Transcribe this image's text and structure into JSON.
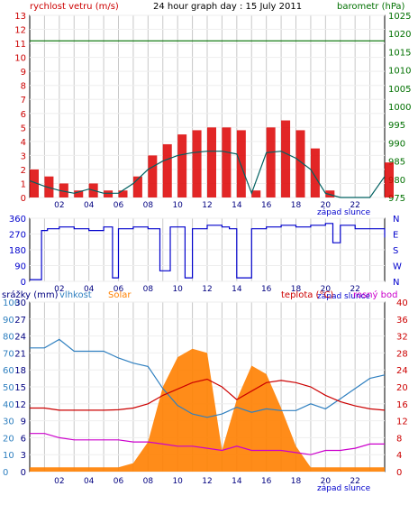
{
  "chart_data": [
    {
      "type": "line",
      "title": "24 hour graph day : 15 July 2011",
      "left_axis_label": "rychlost vetru (m/s)",
      "right_axis_label": "barometr (hPa)",
      "annotation": "západ slunce",
      "x_ticks": [
        "02",
        "04",
        "06",
        "08",
        "10",
        "12",
        "14",
        "16",
        "18",
        "20",
        "22"
      ],
      "left_ticks": [
        "0",
        "1",
        "2",
        "3",
        "4",
        "5",
        "6",
        "7",
        "8",
        "9",
        "10",
        "11",
        "12",
        "13"
      ],
      "right_ticks": [
        "975",
        "980",
        "985",
        "990",
        "995",
        "1000",
        "1005",
        "1010",
        "1015",
        "1020",
        "1025"
      ],
      "ylim_left": [
        0,
        13
      ],
      "ylim_right": [
        975,
        1025
      ],
      "x_hours": [
        0,
        1,
        2,
        3,
        4,
        5,
        6,
        7,
        8,
        9,
        10,
        11,
        12,
        13,
        14,
        15,
        16,
        17,
        18,
        19,
        20,
        21,
        22,
        23,
        24
      ],
      "wind_gust": [
        2,
        1.5,
        1,
        0.5,
        1,
        0.5,
        0.5,
        1.5,
        3,
        3.8,
        4.5,
        4.8,
        5,
        5,
        4.8,
        0.5,
        5,
        5.5,
        4.8,
        3.5,
        0.5,
        0,
        0,
        0,
        2.5
      ],
      "wind_avg": [
        1.2,
        0.8,
        0.5,
        0.3,
        0.6,
        0.3,
        0.3,
        1,
        2,
        2.6,
        3,
        3.2,
        3.3,
        3.3,
        3.1,
        0.3,
        3.2,
        3.3,
        2.8,
        2,
        0.3,
        0,
        0,
        0,
        1.5
      ],
      "barometer": [
        1018,
        1018,
        1018,
        1018,
        1018,
        1018,
        1018,
        1018,
        1018,
        1018,
        1018,
        1018,
        1018,
        1018,
        1018,
        1018,
        1018,
        1018,
        1018,
        1018,
        1018,
        1018,
        1018,
        1018,
        1018
      ],
      "wind_gust_color": "#dd0000",
      "wind_avg_color": "#006060",
      "barometer_color": "#007000"
    },
    {
      "type": "line",
      "title": "",
      "left_ticks": [
        "0",
        "90",
        "180",
        "270",
        "360"
      ],
      "right_ticks": [
        "N",
        "W",
        "S",
        "E",
        "N"
      ],
      "ylim": [
        0,
        360
      ],
      "x_ticks": [
        "02",
        "04",
        "06",
        "08",
        "10",
        "12",
        "14",
        "16",
        "18",
        "20",
        "22"
      ],
      "annotation": "západ slunce",
      "x_hours": [
        0,
        0.8,
        1.2,
        2,
        3,
        4,
        5,
        5.6,
        6,
        7,
        8,
        8.8,
        9.5,
        10.5,
        11,
        12,
        13,
        13.5,
        14,
        15,
        16,
        17,
        18,
        19,
        20,
        20.5,
        21,
        22,
        23,
        24
      ],
      "direction": [
        10,
        290,
        300,
        310,
        300,
        290,
        310,
        20,
        300,
        310,
        300,
        60,
        310,
        20,
        300,
        320,
        310,
        300,
        20,
        300,
        310,
        320,
        310,
        320,
        330,
        220,
        320,
        300,
        300,
        250
      ],
      "direction_color": "#0000cc"
    },
    {
      "type": "line",
      "title": "",
      "label_rain": "srážky (mm)",
      "label_humidity": "vlhkost",
      "label_solar": "Solar",
      "label_temp": "teplota (°C)",
      "label_dew": "rosný bod",
      "annotation": "západ slunce",
      "x_ticks": [
        "02",
        "04",
        "06",
        "08",
        "10",
        "12",
        "14",
        "16",
        "18",
        "20",
        "22"
      ],
      "left_ticks_rain": [
        "0",
        "3",
        "6",
        "9",
        "12",
        "15",
        "18",
        "21",
        "24",
        "27",
        "30"
      ],
      "left_ticks_humidity": [
        "0",
        "10",
        "20",
        "30",
        "40",
        "50",
        "60",
        "70",
        "80",
        "90",
        "100"
      ],
      "right_ticks_temp": [
        "0",
        "4",
        "8",
        "12",
        "16",
        "20",
        "24",
        "28",
        "32",
        "36",
        "40"
      ],
      "ylim_temp": [
        0,
        40
      ],
      "ylim_humidity": [
        0,
        100
      ],
      "x_hours": [
        0,
        1,
        2,
        3,
        4,
        5,
        6,
        7,
        8,
        9,
        10,
        11,
        12,
        13,
        14,
        15,
        16,
        17,
        18,
        19,
        20,
        21,
        22,
        23,
        24
      ],
      "humidity": [
        73,
        73,
        78,
        71,
        71,
        71,
        67,
        64,
        62,
        49,
        39,
        34,
        32,
        34,
        38,
        35,
        37,
        36,
        36,
        40,
        37,
        43,
        49,
        55,
        57
      ],
      "temperature": [
        15,
        15,
        14.5,
        14.5,
        14.5,
        14.5,
        14.6,
        15,
        16,
        18,
        19.5,
        21,
        21.8,
        20,
        17,
        19,
        21,
        21.5,
        21,
        20,
        18,
        16.5,
        15.5,
        14.8,
        14.5
      ],
      "dew_point": [
        9,
        9,
        8,
        7.5,
        7.5,
        7.5,
        7.5,
        7,
        7,
        6.5,
        6,
        6,
        5.5,
        5,
        6,
        5,
        5,
        5,
        4.5,
        4,
        5,
        5,
        5.5,
        6.5,
        6.5
      ],
      "solar_temp_scale": [
        1,
        1,
        1,
        1,
        1,
        1,
        1,
        2,
        7,
        20,
        27,
        29,
        28,
        5,
        17,
        25,
        23,
        15,
        6,
        1,
        1,
        1,
        1,
        1,
        1
      ],
      "humidity_color": "#3080c0",
      "temperature_color": "#cc0000",
      "dew_color": "#cc00cc",
      "solar_color": "#ff8000"
    }
  ]
}
